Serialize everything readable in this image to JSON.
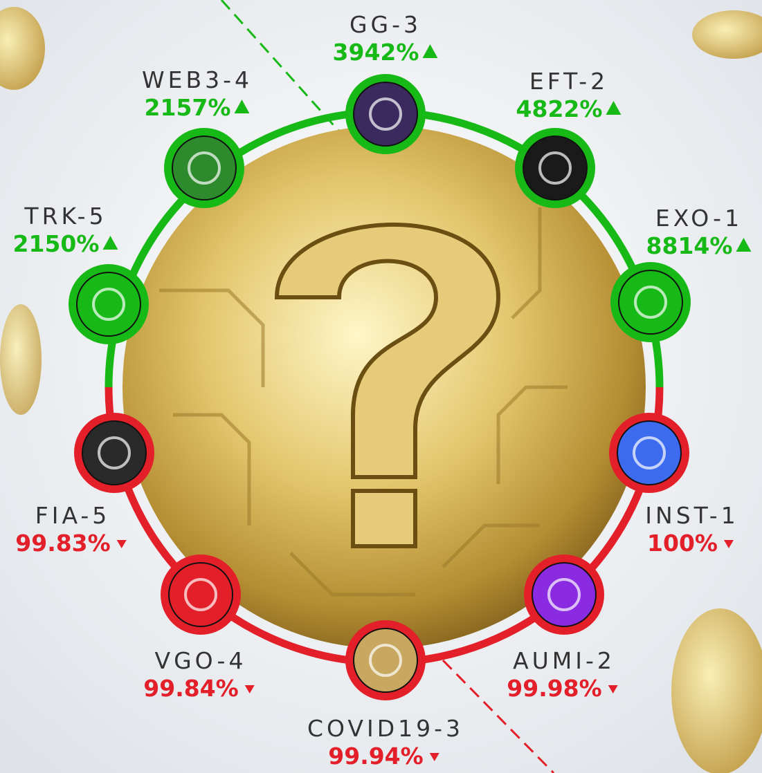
{
  "gainers": {
    "color": "#17b917",
    "items": [
      {
        "name": "GG-3",
        "change": "3942%"
      },
      {
        "name": "EFT-2",
        "change": "4822%"
      },
      {
        "name": "EXO-1",
        "change": "8814%"
      },
      {
        "name": "TRK-5",
        "change": "2150%"
      },
      {
        "name": "WEB3-4",
        "change": "2157%"
      }
    ]
  },
  "losers": {
    "color": "#e3202a",
    "items": [
      {
        "name": "INST-1",
        "change": "100%"
      },
      {
        "name": "AUMI-2",
        "change": "99.98%"
      },
      {
        "name": "COVID19-3",
        "change": "99.94%"
      },
      {
        "name": "VGO-4",
        "change": "99.84%"
      },
      {
        "name": "FIA-5",
        "change": "99.83%"
      }
    ]
  }
}
